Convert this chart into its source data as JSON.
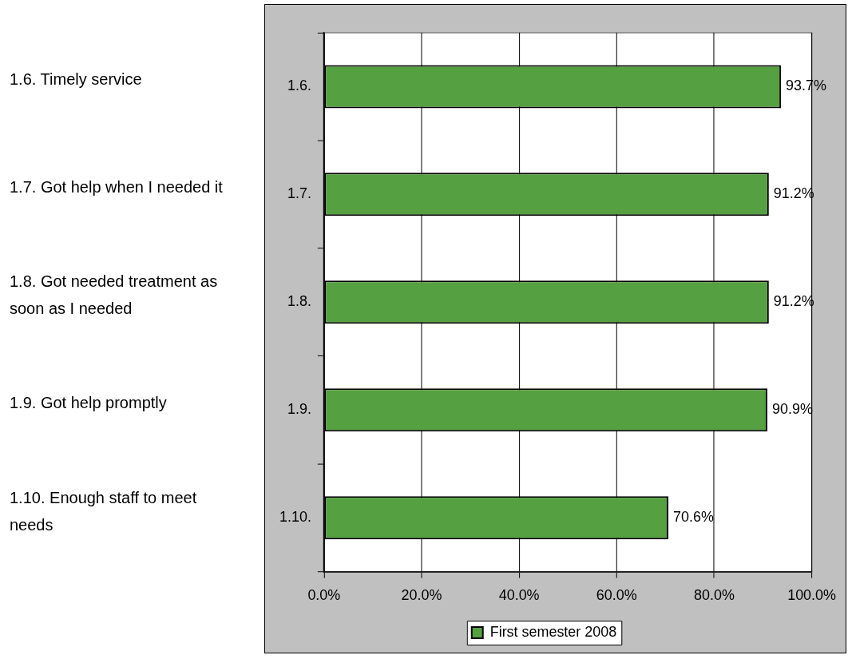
{
  "chart_data": {
    "type": "bar",
    "orientation": "horizontal",
    "categories": [
      "1.6.",
      "1.7.",
      "1.8.",
      "1.9.",
      "1.10."
    ],
    "series": [
      {
        "name": "First semester 2008",
        "color": "#55a040",
        "values": [
          93.7,
          91.2,
          91.2,
          90.9,
          70.6
        ],
        "value_labels": [
          "93.7%",
          "91.2%",
          "91.2%",
          "90.9%",
          "70.6%"
        ]
      }
    ],
    "xlim": [
      0,
      100
    ],
    "xticks": [
      {
        "value": 0,
        "label": "0.0%"
      },
      {
        "value": 20,
        "label": "20.0%"
      },
      {
        "value": 40,
        "label": "40.0%"
      },
      {
        "value": 60,
        "label": "60.0%"
      },
      {
        "value": 80,
        "label": "80.0%"
      },
      {
        "value": 100,
        "label": "100.0%"
      }
    ],
    "grid": "x",
    "legend": "bottom",
    "annotations": [
      "1.6. Timely service",
      "1.7. Got help when I needed it",
      "1.8. Got needed treatment as soon as I needed",
      "1.9. Got help promptly",
      "1.10. Enough staff to meet needs"
    ]
  }
}
